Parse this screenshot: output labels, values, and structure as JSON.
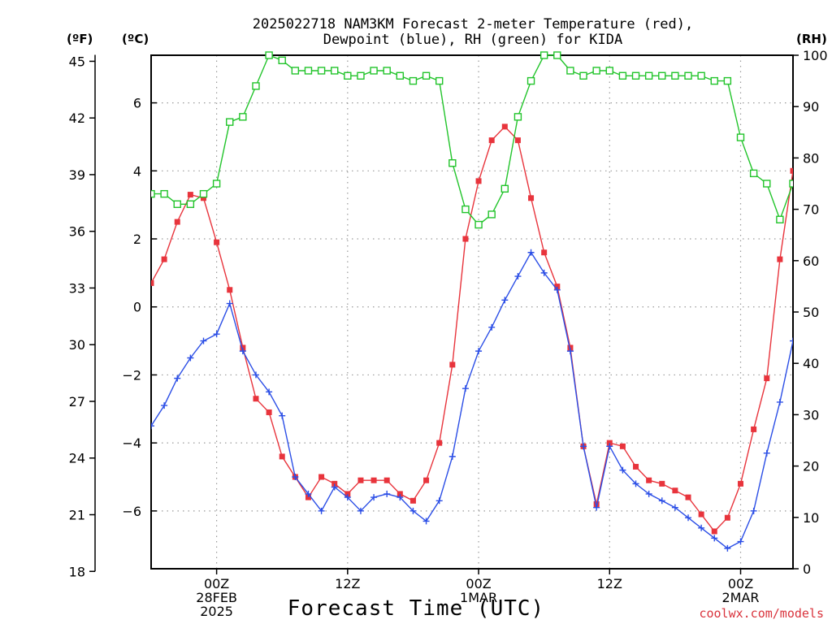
{
  "title_line1": "2025022718 NAM3KM Forecast 2-meter Temperature (red),",
  "title_line2": "Dewpoint (blue), RH (green) for KIDA",
  "unit_f": "(ºF)",
  "unit_c": "(ºC)",
  "unit_rh": "(RH)",
  "xlabel": "Forecast Time (UTC)",
  "credit": "coolwx.com/models",
  "chart_data": {
    "type": "line",
    "x_range_hours": [
      -5,
      44
    ],
    "x_ticks": [
      {
        "h": 0,
        "lines": [
          "00Z",
          "28FEB",
          "2025"
        ]
      },
      {
        "h": 10,
        "lines": [
          "12Z"
        ]
      },
      {
        "h": 20,
        "lines": [
          "00Z",
          "1MAR"
        ]
      },
      {
        "h": 30,
        "lines": [
          "12Z"
        ]
      },
      {
        "h": 40,
        "lines": [
          "00Z",
          "2MAR"
        ]
      }
    ],
    "y_left_c_range": [
      -7.7,
      7.4
    ],
    "y_left_c_ticks": [
      6,
      4,
      2,
      0,
      -2,
      -4,
      -6
    ],
    "y_far_left_f_ticks": [
      45,
      42,
      39,
      36,
      33,
      30,
      27,
      24,
      21,
      18
    ],
    "y_right_rh_range": [
      0,
      100
    ],
    "y_right_rh_ticks": [
      100,
      90,
      80,
      70,
      60,
      50,
      40,
      30,
      20,
      10,
      0
    ],
    "grid": true,
    "series": [
      {
        "name": "Temperature",
        "color": "#e8343c",
        "axis": "C",
        "marker": "filled-square",
        "x": [
          -5,
          -4,
          -3,
          -2,
          -1,
          0,
          1,
          2,
          3,
          4,
          5,
          6,
          7,
          8,
          9,
          10,
          11,
          12,
          13,
          14,
          15,
          16,
          17,
          18,
          19,
          20,
          21,
          22,
          23,
          24,
          25,
          26,
          27,
          28,
          29,
          30,
          31,
          32,
          33,
          34,
          35,
          36,
          37,
          38,
          39,
          40,
          41,
          42,
          43,
          44
        ],
        "values": [
          0.7,
          1.4,
          2.5,
          3.3,
          3.2,
          1.9,
          0.5,
          -1.2,
          -2.7,
          -3.1,
          -4.4,
          -5.0,
          -5.6,
          -5.0,
          -5.2,
          -5.5,
          -5.1,
          -5.1,
          -5.1,
          -5.5,
          -5.7,
          -5.1,
          -4.0,
          -1.7,
          2.0,
          3.7,
          4.9,
          5.3,
          4.9,
          3.2,
          1.6,
          0.6,
          -1.2,
          -4.1,
          -5.8,
          -4.0,
          -4.1,
          -4.7,
          -5.1,
          -5.2,
          -5.4,
          -5.6,
          -6.1,
          -6.6,
          -6.2,
          -5.2,
          -3.6,
          -2.1,
          1.4,
          4.0
        ]
      },
      {
        "name": "Dewpoint",
        "color": "#2b4ee6",
        "axis": "C",
        "marker": "plus",
        "x": [
          -5,
          -4,
          -3,
          -2,
          -1,
          0,
          1,
          2,
          3,
          4,
          5,
          6,
          7,
          8,
          9,
          10,
          11,
          12,
          13,
          14,
          15,
          16,
          17,
          18,
          19,
          20,
          21,
          22,
          23,
          24,
          25,
          26,
          27,
          28,
          29,
          30,
          31,
          32,
          33,
          34,
          35,
          36,
          37,
          38,
          39,
          40,
          41,
          42,
          43,
          44
        ],
        "values": [
          -3.5,
          -2.9,
          -2.1,
          -1.5,
          -1.0,
          -0.8,
          0.1,
          -1.3,
          -2.0,
          -2.5,
          -3.2,
          -5.0,
          -5.5,
          -6.0,
          -5.3,
          -5.6,
          -6.0,
          -5.6,
          -5.5,
          -5.6,
          -6.0,
          -6.3,
          -5.7,
          -4.4,
          -2.4,
          -1.3,
          -0.6,
          0.2,
          0.9,
          1.6,
          1.0,
          0.5,
          -1.3,
          -4.1,
          -5.9,
          -4.1,
          -4.8,
          -5.2,
          -5.5,
          -5.7,
          -5.9,
          -6.2,
          -6.5,
          -6.8,
          -7.1,
          -6.9,
          -6.0,
          -4.3,
          -2.8,
          -1.0
        ]
      },
      {
        "name": "RH",
        "color": "#22c42b",
        "axis": "RH",
        "marker": "open-square",
        "x": [
          -5,
          -4,
          -3,
          -2,
          -1,
          0,
          1,
          2,
          3,
          4,
          5,
          6,
          7,
          8,
          9,
          10,
          11,
          12,
          13,
          14,
          15,
          16,
          17,
          18,
          19,
          20,
          21,
          22,
          23,
          24,
          25,
          26,
          27,
          28,
          29,
          30,
          31,
          32,
          33,
          34,
          35,
          36,
          37,
          38,
          39,
          40,
          41,
          42,
          43,
          44
        ],
        "values": [
          73,
          73,
          71,
          71,
          73,
          75,
          87,
          88,
          94,
          100,
          99,
          97,
          97,
          97,
          97,
          96,
          96,
          97,
          97,
          96,
          95,
          96,
          95,
          79,
          70,
          67,
          69,
          74,
          88,
          95,
          100,
          100,
          97,
          96,
          97,
          97,
          96,
          96,
          96,
          96,
          96,
          96,
          96,
          95,
          95,
          84,
          77,
          75,
          68,
          75
        ]
      }
    ]
  }
}
